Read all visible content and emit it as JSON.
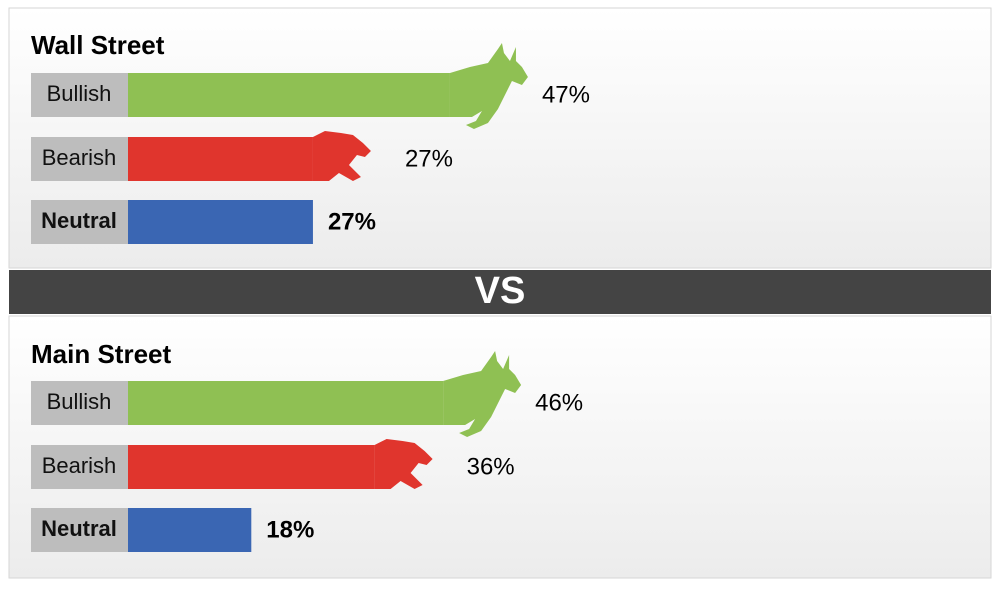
{
  "chart_data": [
    {
      "type": "bar",
      "title": "Wall Street",
      "categories": [
        "Bullish",
        "Bearish",
        "Neutral"
      ],
      "values": [
        47,
        27,
        27
      ],
      "value_labels": [
        "47%",
        "27%",
        "27%"
      ],
      "colors": [
        "#8fc053",
        "#e0352d",
        "#3a66b3"
      ]
    },
    {
      "type": "bar",
      "title": "Main Street",
      "categories": [
        "Bullish",
        "Bearish",
        "Neutral"
      ],
      "values": [
        46,
        36,
        18
      ],
      "value_labels": [
        "46%",
        "36%",
        "18%"
      ],
      "colors": [
        "#8fc053",
        "#e0352d",
        "#3a66b3"
      ]
    }
  ],
  "divider": "VS"
}
